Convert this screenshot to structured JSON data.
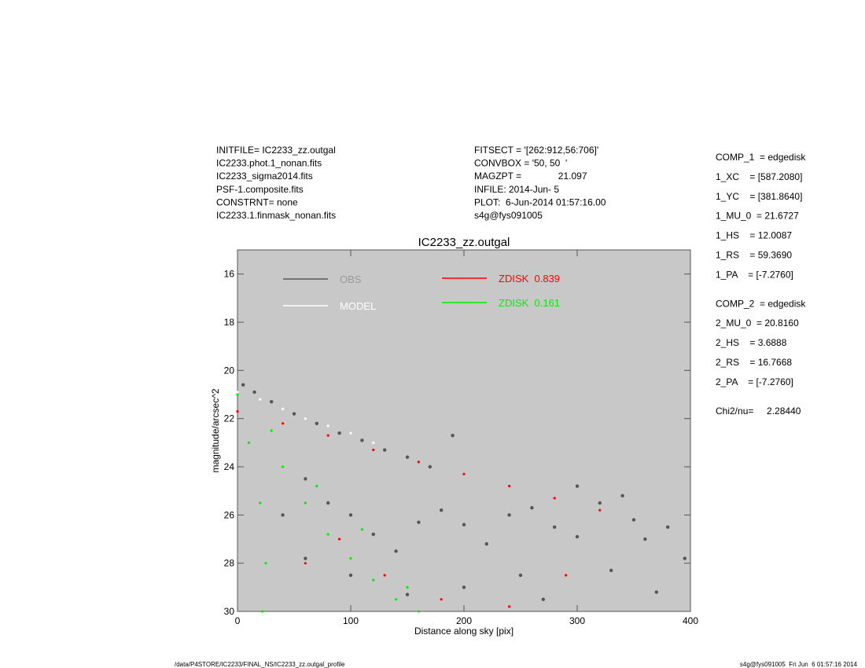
{
  "header": {
    "left": [
      "INITFILE= IC2233_zz.outgal",
      "IC2233.phot.1_nonan.fits",
      "IC2233_sigma2014.fits",
      "PSF-1.composite.fits",
      "CONSTRNT= none",
      "IC2233.1.finmask_nonan.fits"
    ],
    "middle": [
      "FITSECT = '[262:912,56:706]'",
      "CONVBOX = '50, 50  '",
      "MAGZPT =              21.097",
      "INFILE: 2014-Jun- 5",
      "PLOT:  6-Jun-2014 01:57:16.00",
      "s4g@fys091005"
    ]
  },
  "params": [
    [
      "COMP_1  = edgedisk",
      "1_XC    = [587.2080]",
      "1_YC    = [381.8640]",
      "1_MU_0  = 21.6727",
      "1_HS    = 12.0087",
      "1_RS    = 59.3690",
      "1_PA    = [-7.2760]"
    ],
    [
      "COMP_2  = edgedisk",
      "2_MU_0  = 20.8160",
      "2_HS    = 3.6888",
      "2_RS    = 16.7668",
      "2_PA    = [-7.2760]"
    ],
    [
      "Chi2/nu=     2.28440"
    ]
  ],
  "footer": {
    "left": "/data/P4STORE/IC2233/FINAL_NS/IC2233_zz.outgal_profile",
    "right": "s4g@fys091005  Fri Jun  6 01:57:16 2014"
  },
  "chart_data": {
    "type": "scatter",
    "title": "IC2233_zz.outgal",
    "xlabel": "Distance along sky [pix]",
    "ylabel": "magnitude/arcsec^2",
    "xlim": [
      0,
      400
    ],
    "ylim": [
      30,
      15
    ],
    "xticks": [
      0,
      100,
      200,
      300,
      400
    ],
    "yticks": [
      16,
      18,
      20,
      22,
      24,
      26,
      28,
      30
    ],
    "series": [
      {
        "name": "OBS",
        "color": "#555555",
        "x": [
          5,
          15,
          30,
          50,
          70,
          90,
          110,
          130,
          150,
          170,
          60,
          80,
          100,
          120,
          140,
          160,
          180,
          200,
          220,
          240,
          260,
          280,
          300,
          320,
          340,
          350,
          360,
          380,
          395,
          250,
          200,
          150,
          270,
          330,
          370,
          100,
          60,
          40,
          190,
          300
        ],
        "values": [
          20.6,
          20.9,
          21.3,
          21.8,
          22.2,
          22.6,
          22.9,
          23.3,
          23.6,
          24.0,
          24.5,
          25.5,
          26.0,
          26.8,
          27.5,
          26.3,
          25.8,
          26.4,
          27.2,
          26.0,
          25.7,
          26.5,
          26.9,
          25.5,
          25.2,
          26.2,
          27.0,
          26.5,
          27.8,
          28.5,
          29.0,
          29.3,
          29.5,
          28.3,
          29.2,
          28.5,
          27.8,
          26.0,
          22.7,
          24.8
        ]
      },
      {
        "name": "MODEL",
        "color": "#ffffff",
        "x": [
          0,
          20,
          40,
          60,
          80,
          100,
          120
        ],
        "values": [
          20.9,
          21.2,
          21.6,
          22.0,
          22.3,
          22.6,
          23.0
        ]
      },
      {
        "name": "ZDISK  0.839",
        "color": "#ff0000",
        "x": [
          0,
          40,
          80,
          120,
          160,
          200,
          240,
          280,
          320,
          60,
          90,
          130,
          180,
          240,
          290
        ],
        "values": [
          21.7,
          22.2,
          22.7,
          23.3,
          23.8,
          24.3,
          24.8,
          25.3,
          25.8,
          28.0,
          27.0,
          28.5,
          29.5,
          29.8,
          28.5
        ]
      },
      {
        "name": "ZDISK  0.161",
        "color": "#00ee00",
        "x": [
          0,
          10,
          20,
          25,
          22,
          40,
          60,
          80,
          100,
          120,
          140,
          160,
          30,
          70,
          110,
          150
        ],
        "values": [
          21.0,
          23.0,
          25.5,
          28.0,
          30.0,
          24.0,
          25.5,
          26.8,
          27.8,
          28.7,
          29.5,
          30.0,
          22.5,
          24.8,
          26.6,
          29.0
        ]
      }
    ]
  }
}
